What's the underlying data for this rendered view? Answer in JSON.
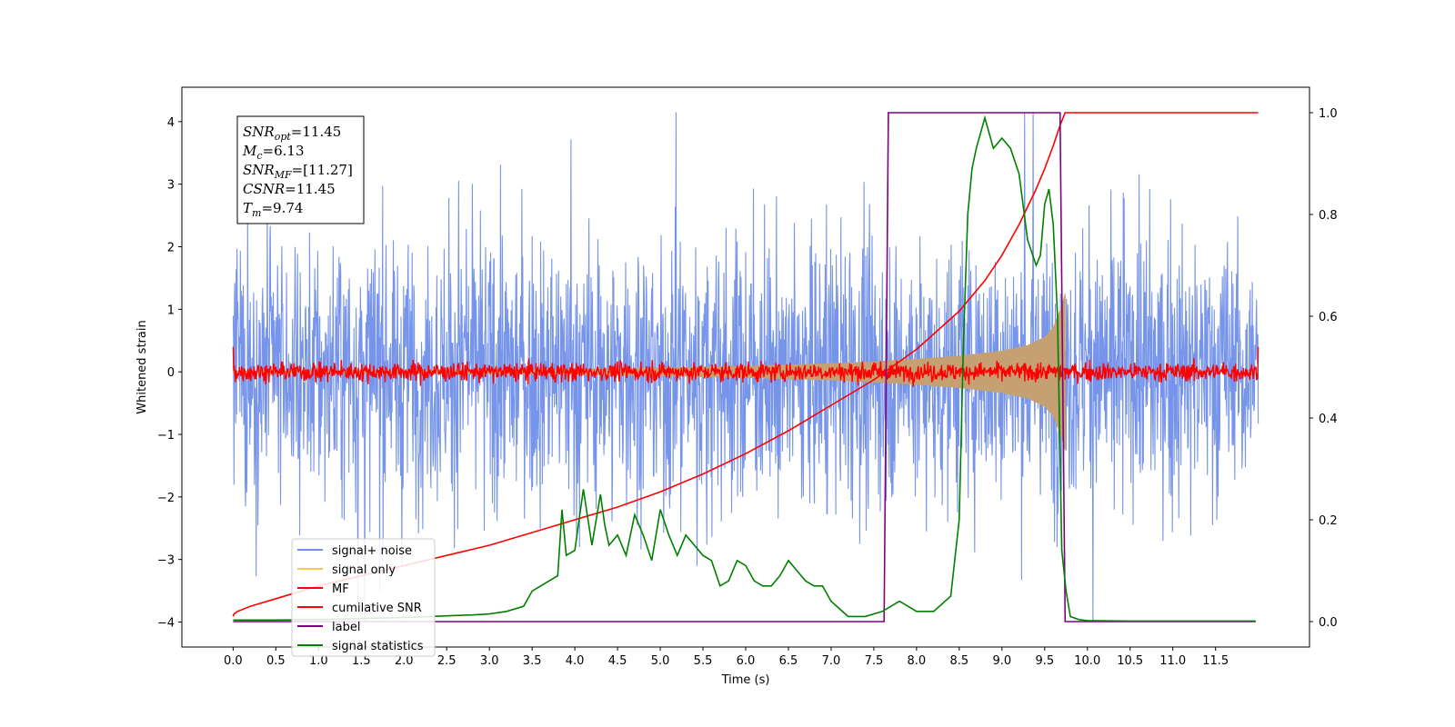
{
  "chart_data": {
    "type": "line",
    "xlabel": "Time (s)",
    "ylabel": "Whitened strain",
    "xlim": [
      -0.6,
      12.6
    ],
    "ylim": [
      -4.4,
      4.55
    ],
    "y2lim": [
      -0.05,
      1.05
    ],
    "x_ticks": [
      "0.0",
      "0.5",
      "1.0",
      "1.5",
      "2.0",
      "2.5",
      "3.0",
      "3.5",
      "4.0",
      "4.5",
      "5.0",
      "5.5",
      "6.0",
      "6.5",
      "7.0",
      "7.5",
      "8.0",
      "8.5",
      "9.0",
      "9.5",
      "10.0",
      "10.5",
      "11.0",
      "11.5"
    ],
    "y_ticks": [
      "4",
      "3",
      "2",
      "1",
      "0",
      "−1",
      "−2",
      "−3",
      "−4"
    ],
    "y2_ticks": [
      "1.0",
      "0.8",
      "0.6",
      "0.4",
      "0.2",
      "0.0"
    ],
    "legend": {
      "placement": "lower-left",
      "entries": [
        {
          "label": "signal+ noise",
          "color": "#6f8ee8"
        },
        {
          "label": "signal only",
          "color": "#f5c55a"
        },
        {
          "label": "MF",
          "color": "#ff0000"
        },
        {
          "label": "cumilative SNR",
          "color": "#ff0000"
        },
        {
          "label": "label",
          "color": "#800080"
        },
        {
          "label": "signal statistics",
          "color": "#008000"
        }
      ]
    },
    "annotation": {
      "lines": [
        {
          "name": "SNR",
          "sub": "opt",
          "value": "=11.45"
        },
        {
          "name": "M",
          "sub": "c",
          "value": "=6.13"
        },
        {
          "name": "SNR",
          "sub": "MF",
          "value": "=[11.27]"
        },
        {
          "name": "CSNR",
          "sub": "",
          "value": "=11.45"
        },
        {
          "name": "T",
          "sub": "m",
          "value": "=9.74"
        }
      ]
    },
    "series": [
      {
        "name": "signal+ noise",
        "axis": "left",
        "description": "noisy whitened strain spanning 0 to 12 s, amplitude roughly ±3 with spikes to ±4",
        "range": [
          -4.0,
          4.15
        ],
        "x_range": [
          0.0,
          12.0
        ]
      },
      {
        "name": "signal only",
        "axis": "left",
        "description": "chirp envelope growing from 0 to about ±1.2 ending at 9.74 s",
        "envelope_x": [
          0.0,
          2.0,
          4.0,
          5.0,
          6.0,
          7.0,
          7.5,
          8.0,
          8.5,
          9.0,
          9.3,
          9.5,
          9.6,
          9.7,
          9.74
        ],
        "envelope_y": [
          0.01,
          0.02,
          0.04,
          0.06,
          0.09,
          0.13,
          0.16,
          0.2,
          0.25,
          0.33,
          0.42,
          0.55,
          0.7,
          1.05,
          1.25
        ]
      },
      {
        "name": "MF",
        "axis": "left",
        "description": "matched-filter output near zero, amplitude about ±0.25",
        "x_range": [
          0.0,
          12.0
        ]
      },
      {
        "name": "cumilative SNR",
        "axis": "right",
        "x": [
          0.0,
          0.01,
          0.05,
          0.2,
          0.5,
          1.0,
          1.5,
          2.0,
          2.5,
          3.0,
          3.5,
          4.0,
          4.5,
          5.0,
          5.5,
          6.0,
          6.5,
          7.0,
          7.5,
          8.0,
          8.5,
          8.8,
          9.0,
          9.2,
          9.4,
          9.5,
          9.6,
          9.68,
          9.74,
          9.8,
          10.5,
          11.0,
          11.5,
          11.97,
          12.0
        ],
        "y": [
          0.01,
          0.015,
          0.02,
          0.03,
          0.045,
          0.07,
          0.09,
          0.11,
          0.13,
          0.15,
          0.175,
          0.2,
          0.225,
          0.255,
          0.29,
          0.33,
          0.375,
          0.425,
          0.475,
          0.535,
          0.61,
          0.67,
          0.72,
          0.78,
          0.85,
          0.89,
          0.935,
          0.975,
          1.0,
          1.0,
          1.0,
          1.0,
          1.0,
          1.0,
          1.0
        ]
      },
      {
        "name": "label",
        "axis": "right",
        "x": [
          0.0,
          7.62,
          7.67,
          9.68,
          9.74,
          11.97
        ],
        "y": [
          0.0,
          0.0,
          1.0,
          1.0,
          0.0,
          0.0
        ]
      },
      {
        "name": "signal statistics",
        "axis": "right",
        "x": [
          0.0,
          0.5,
          1.0,
          1.5,
          2.0,
          2.3,
          2.6,
          2.8,
          3.0,
          3.2,
          3.4,
          3.5,
          3.6,
          3.7,
          3.8,
          3.85,
          3.9,
          4.0,
          4.1,
          4.2,
          4.3,
          4.35,
          4.4,
          4.5,
          4.6,
          4.7,
          4.8,
          4.9,
          5.0,
          5.1,
          5.2,
          5.3,
          5.4,
          5.5,
          5.6,
          5.7,
          5.8,
          5.9,
          6.0,
          6.1,
          6.2,
          6.3,
          6.4,
          6.5,
          6.6,
          6.7,
          6.8,
          6.9,
          7.0,
          7.2,
          7.4,
          7.6,
          7.8,
          7.9,
          8.0,
          8.2,
          8.4,
          8.5,
          8.55,
          8.6,
          8.65,
          8.7,
          8.8,
          8.9,
          9.0,
          9.05,
          9.1,
          9.2,
          9.3,
          9.4,
          9.45,
          9.5,
          9.55,
          9.6,
          9.65,
          9.7,
          9.75,
          9.8,
          9.9,
          10.0,
          10.5,
          11.0,
          11.5,
          11.97
        ],
        "y": [
          0.003,
          0.003,
          0.004,
          0.006,
          0.008,
          0.01,
          0.012,
          0.013,
          0.015,
          0.02,
          0.03,
          0.06,
          0.07,
          0.08,
          0.09,
          0.22,
          0.13,
          0.14,
          0.26,
          0.15,
          0.25,
          0.19,
          0.15,
          0.17,
          0.13,
          0.21,
          0.17,
          0.12,
          0.22,
          0.17,
          0.13,
          0.17,
          0.15,
          0.13,
          0.12,
          0.07,
          0.08,
          0.12,
          0.11,
          0.08,
          0.07,
          0.07,
          0.09,
          0.12,
          0.1,
          0.08,
          0.07,
          0.07,
          0.04,
          0.01,
          0.01,
          0.02,
          0.04,
          0.03,
          0.02,
          0.02,
          0.05,
          0.2,
          0.55,
          0.8,
          0.89,
          0.93,
          0.99,
          0.93,
          0.95,
          0.94,
          0.93,
          0.88,
          0.75,
          0.7,
          0.72,
          0.82,
          0.85,
          0.78,
          0.6,
          0.14,
          0.06,
          0.01,
          0.004,
          0.002,
          0.001,
          0.001,
          0.001,
          0.001
        ]
      }
    ]
  }
}
